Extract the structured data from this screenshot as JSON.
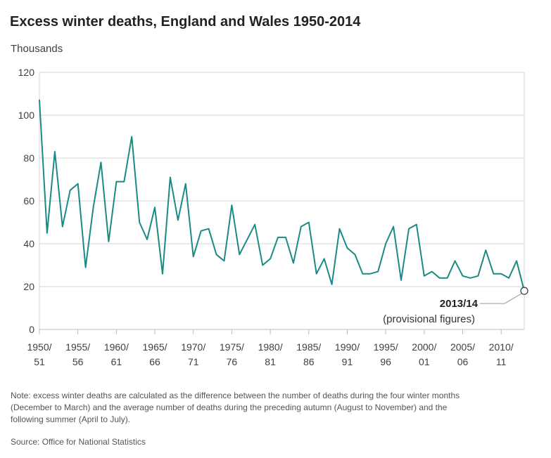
{
  "title": "Excess winter deaths, England and Wales 1950-2014",
  "subtitle": "Thousands",
  "note": "Note: excess winter deaths are calculated as the difference between the number of deaths during the four winter months (December to March) and the average number of deaths during the preceding autumn (August to November) and the following summer (April to July).",
  "source": "Source: Office for National Statistics",
  "chart_data": {
    "type": "line",
    "title": "Excess winter deaths, England and Wales 1950-2014",
    "ylabel": "Thousands",
    "xlabel": "",
    "ylim": [
      0,
      120
    ],
    "yticks": [
      0,
      20,
      40,
      60,
      80,
      100,
      120
    ],
    "grid": true,
    "line_color": "#1a8a84",
    "x_tick_labels": [
      {
        "line1": "1950/",
        "line2": "51",
        "index": 0
      },
      {
        "line1": "1955/",
        "line2": "56",
        "index": 5
      },
      {
        "line1": "1960/",
        "line2": "61",
        "index": 10
      },
      {
        "line1": "1965/",
        "line2": "66",
        "index": 15
      },
      {
        "line1": "1970/",
        "line2": "71",
        "index": 20
      },
      {
        "line1": "1975/",
        "line2": "76",
        "index": 25
      },
      {
        "line1": "1980/",
        "line2": "81",
        "index": 30
      },
      {
        "line1": "1985/",
        "line2": "86",
        "index": 35
      },
      {
        "line1": "1990/",
        "line2": "91",
        "index": 40
      },
      {
        "line1": "1995/",
        "line2": "96",
        "index": 45
      },
      {
        "line1": "2000/",
        "line2": "01",
        "index": 50
      },
      {
        "line1": "2005/",
        "line2": "06",
        "index": 55
      },
      {
        "line1": "2010/",
        "line2": "11",
        "index": 60
      }
    ],
    "x": [
      "1950/51",
      "1951/52",
      "1952/53",
      "1953/54",
      "1954/55",
      "1955/56",
      "1956/57",
      "1957/58",
      "1958/59",
      "1959/60",
      "1960/61",
      "1961/62",
      "1962/63",
      "1963/64",
      "1964/65",
      "1965/66",
      "1966/67",
      "1967/68",
      "1968/69",
      "1969/70",
      "1970/71",
      "1971/72",
      "1972/73",
      "1973/74",
      "1974/75",
      "1975/76",
      "1976/77",
      "1977/78",
      "1978/79",
      "1979/80",
      "1980/81",
      "1981/82",
      "1982/83",
      "1983/84",
      "1984/85",
      "1985/86",
      "1986/87",
      "1987/88",
      "1988/89",
      "1989/90",
      "1990/91",
      "1991/92",
      "1992/93",
      "1993/94",
      "1994/95",
      "1995/96",
      "1996/97",
      "1997/98",
      "1998/99",
      "1999/00",
      "2000/01",
      "2001/02",
      "2002/03",
      "2003/04",
      "2004/05",
      "2005/06",
      "2006/07",
      "2007/08",
      "2008/09",
      "2009/10",
      "2010/11",
      "2011/12",
      "2012/13",
      "2013/14"
    ],
    "values": [
      107,
      45,
      83,
      48,
      65,
      68,
      29,
      57,
      78,
      41,
      69,
      69,
      90,
      50,
      42,
      57,
      26,
      71,
      51,
      68,
      34,
      46,
      47,
      35,
      32,
      58,
      35,
      42,
      49,
      30,
      33,
      43,
      43,
      31,
      48,
      50,
      26,
      33,
      21,
      47,
      38,
      35,
      26,
      26,
      27,
      40,
      48,
      23,
      47,
      49,
      25,
      27,
      24,
      24,
      32,
      25,
      24,
      25,
      37,
      26,
      26,
      24,
      32,
      18
    ],
    "annotation": {
      "label_bold": "2013/14",
      "label": "(provisional figures)",
      "index": 63
    }
  }
}
